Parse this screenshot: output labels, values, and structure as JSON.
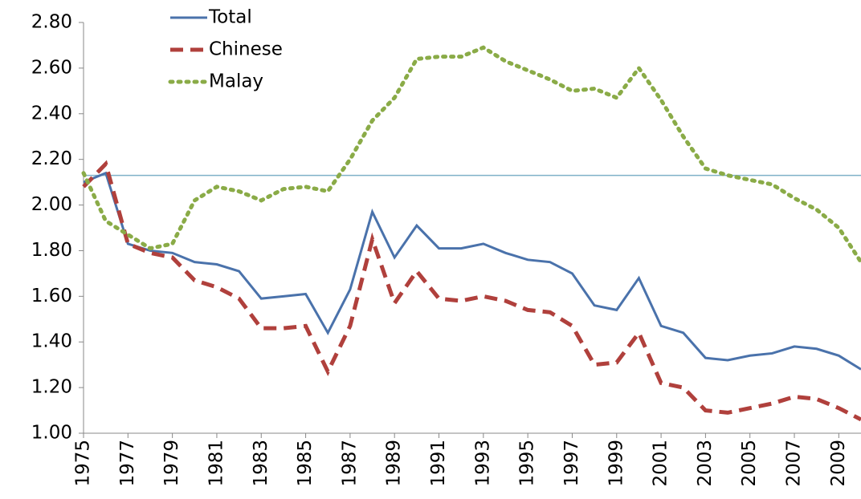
{
  "chart_data": {
    "type": "line",
    "x": [
      1975,
      1976,
      1977,
      1978,
      1979,
      1980,
      1981,
      1982,
      1983,
      1984,
      1985,
      1986,
      1987,
      1988,
      1989,
      1990,
      1991,
      1992,
      1993,
      1994,
      1995,
      1996,
      1997,
      1998,
      1999,
      2000,
      2001,
      2002,
      2003,
      2004,
      2005,
      2006,
      2007,
      2008,
      2009,
      2010
    ],
    "series": [
      {
        "name": "Total",
        "color": "#4a72ab",
        "style": "solid",
        "values": [
          2.1,
          2.14,
          1.83,
          1.8,
          1.79,
          1.75,
          1.74,
          1.71,
          1.59,
          1.6,
          1.61,
          1.44,
          1.63,
          1.97,
          1.77,
          1.91,
          1.81,
          1.81,
          1.83,
          1.79,
          1.76,
          1.75,
          1.7,
          1.56,
          1.54,
          1.68,
          1.47,
          1.44,
          1.33,
          1.32,
          1.34,
          1.35,
          1.38,
          1.37,
          1.34,
          1.28
        ]
      },
      {
        "name": "Chinese",
        "color": "#b0403c",
        "style": "dashed",
        "values": [
          2.08,
          2.18,
          1.83,
          1.79,
          1.77,
          1.67,
          1.64,
          1.59,
          1.46,
          1.46,
          1.47,
          1.27,
          1.47,
          1.85,
          1.57,
          1.71,
          1.59,
          1.58,
          1.6,
          1.58,
          1.54,
          1.53,
          1.47,
          1.3,
          1.31,
          1.44,
          1.22,
          1.2,
          1.1,
          1.09,
          1.11,
          1.13,
          1.16,
          1.15,
          1.11,
          1.06
        ]
      },
      {
        "name": "Malay",
        "color": "#8aab47",
        "style": "dotted",
        "values": [
          2.14,
          1.93,
          1.87,
          1.81,
          1.83,
          2.02,
          2.08,
          2.06,
          2.02,
          2.07,
          2.08,
          2.06,
          2.2,
          2.37,
          2.47,
          2.64,
          2.65,
          2.65,
          2.69,
          2.63,
          2.59,
          2.55,
          2.5,
          2.51,
          2.47,
          2.6,
          2.46,
          2.3,
          2.16,
          2.13,
          2.11,
          2.09,
          2.03,
          1.98,
          1.9,
          1.75
        ]
      }
    ],
    "xlim": [
      1975,
      2010
    ],
    "xticks": [
      1975,
      1977,
      1979,
      1981,
      1983,
      1985,
      1987,
      1989,
      1991,
      1993,
      1995,
      1997,
      1999,
      2001,
      2003,
      2005,
      2007,
      2009
    ],
    "ylim": [
      1.0,
      2.8
    ],
    "yticks": [
      {
        "value": 1.0,
        "label": "1.00"
      },
      {
        "value": 1.2,
        "label": "1.20"
      },
      {
        "value": 1.4,
        "label": "1.40"
      },
      {
        "value": 1.6,
        "label": "1.60"
      },
      {
        "value": 1.8,
        "label": "1.80"
      },
      {
        "value": 2.0,
        "label": "2.00"
      },
      {
        "value": 2.2,
        "label": "2.20"
      },
      {
        "value": 2.4,
        "label": "2.40"
      },
      {
        "value": 2.6,
        "label": "2.60"
      },
      {
        "value": 2.8,
        "label": "2.80"
      }
    ],
    "hline": {
      "value": 2.13,
      "color": "#7fb0c8"
    },
    "legend": "top-left"
  }
}
